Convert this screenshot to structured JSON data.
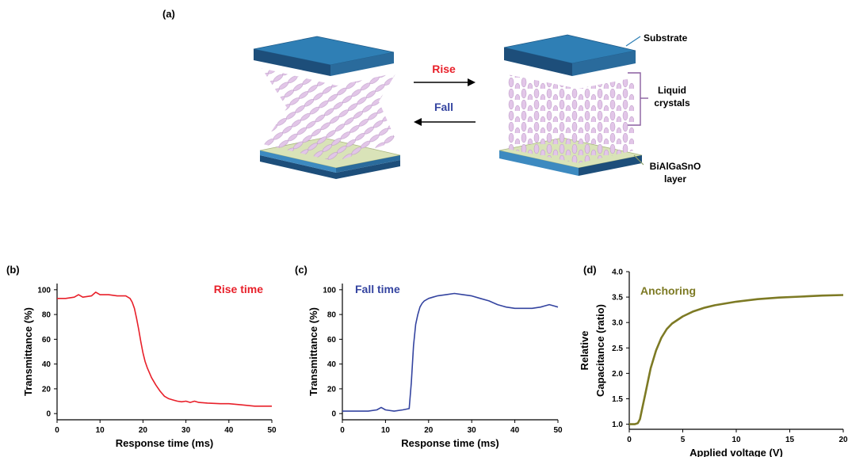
{
  "panel_a": {
    "label": "(a)",
    "rise_label": "Rise",
    "fall_label": "Fall",
    "substrate_label": "Substrate",
    "lc_label_line1": "Liquid",
    "lc_label_line2": "crystals",
    "layer_label_line1": "BiAlGaSnO",
    "layer_label_line2": "layer",
    "colors": {
      "substrate_top": "#2f7fb5",
      "substrate_side": "#1d4e7a",
      "layer": "#d9e3b8",
      "lc": "#e2c6e8",
      "rise": "#e8202a",
      "fall": "#3444a0",
      "bracket": "#8a5fa0"
    }
  },
  "chart_data": [
    {
      "panel": "(b)",
      "type": "line",
      "annotation": "Rise time",
      "xlabel": "Response time (ms)",
      "ylabel": "Transmittance (%)",
      "xlim": [
        0,
        50
      ],
      "ylim": [
        -5,
        105
      ],
      "xticks": [
        0,
        10,
        20,
        30,
        40,
        50
      ],
      "yticks": [
        0,
        20,
        40,
        60,
        80,
        100
      ],
      "color": "#e8202a",
      "x": [
        0,
        2,
        4,
        5,
        6,
        8,
        9,
        10,
        12,
        14,
        16,
        17,
        17.5,
        18,
        18.5,
        19,
        19.5,
        20,
        20.5,
        21,
        21.5,
        22,
        23,
        24,
        25,
        26,
        27,
        28,
        29,
        30,
        31,
        32,
        33,
        35,
        38,
        40,
        43,
        46,
        50
      ],
      "y": [
        93,
        93,
        94,
        96,
        94,
        95,
        98,
        96,
        96,
        95,
        95,
        93,
        90,
        85,
        77,
        68,
        58,
        49,
        42,
        37,
        33,
        29,
        23,
        18,
        14,
        12,
        11,
        10,
        9.5,
        10,
        9,
        10,
        9,
        8.5,
        8,
        8,
        7,
        6,
        6
      ]
    },
    {
      "panel": "(c)",
      "type": "line",
      "annotation": "Fall time",
      "xlabel": "Response time (ms)",
      "ylabel": "Transmittance (%)",
      "xlim": [
        0,
        50
      ],
      "ylim": [
        -5,
        105
      ],
      "xticks": [
        0,
        10,
        20,
        30,
        40,
        50
      ],
      "yticks": [
        0,
        20,
        40,
        60,
        80,
        100
      ],
      "color": "#3444a0",
      "x": [
        0,
        3,
        6,
        8,
        9,
        10,
        12,
        14,
        15.5,
        16,
        16.5,
        17,
        17.5,
        18,
        18.5,
        19,
        20,
        21,
        22,
        24,
        26,
        28,
        30,
        32,
        34,
        36,
        38,
        40,
        42,
        44,
        46,
        47,
        48,
        49,
        50
      ],
      "y": [
        2,
        2,
        2,
        3,
        5,
        3,
        2,
        3,
        4,
        25,
        55,
        72,
        80,
        86,
        89,
        91,
        93,
        94,
        95,
        96,
        97,
        96,
        95,
        93,
        91,
        88,
        86,
        85,
        85,
        85,
        86,
        87,
        88,
        87,
        86
      ]
    },
    {
      "panel": "(d)",
      "type": "line",
      "annotation": "Anchoring",
      "xlabel": "Applied voltage (V)",
      "ylabel_line1": "Relative",
      "ylabel_line2": "Capacitance (ratio)",
      "xlim": [
        0,
        20
      ],
      "ylim": [
        0.9,
        4.0
      ],
      "xticks": [
        0,
        5,
        10,
        15,
        20
      ],
      "yticks": [
        1.0,
        1.5,
        2.0,
        2.5,
        3.0,
        3.5,
        4.0
      ],
      "color": "#7d7a24",
      "x": [
        0,
        0.5,
        0.8,
        1.0,
        1.2,
        1.5,
        1.8,
        2.0,
        2.5,
        3.0,
        3.5,
        4,
        5,
        6,
        7,
        8,
        10,
        12,
        14,
        16,
        18,
        20
      ],
      "y": [
        1.0,
        1.0,
        1.02,
        1.1,
        1.3,
        1.6,
        1.9,
        2.1,
        2.45,
        2.7,
        2.87,
        2.98,
        3.12,
        3.22,
        3.29,
        3.34,
        3.41,
        3.46,
        3.49,
        3.51,
        3.53,
        3.54
      ]
    }
  ]
}
